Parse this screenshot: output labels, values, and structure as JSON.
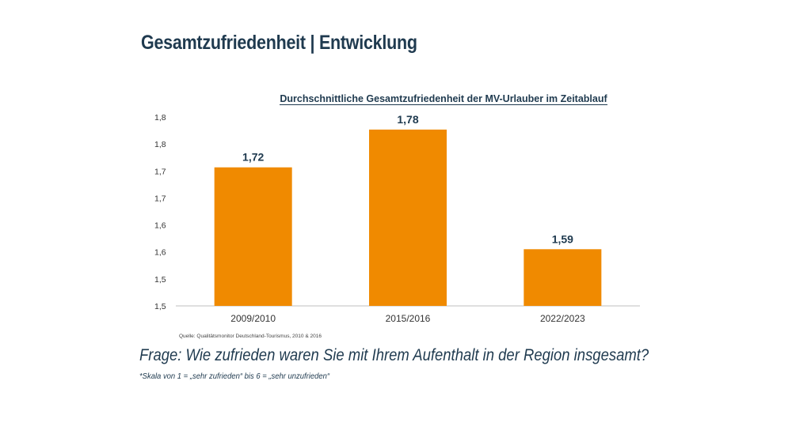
{
  "slide": {
    "title": "Gesamtzufriedenheit | Entwicklung",
    "source": "Quelle: Qualitätsmonitor Deutschland-Tourismus, 2010 & 2016",
    "question": "Frage: Wie zufrieden waren Sie mit Ihrem Aufenthalt in der Region insgesamt?",
    "scale_note": "*Skala von 1 = „sehr zufrieden“ bis  6 = „sehr unzufrieden“"
  },
  "chart_data": {
    "type": "bar",
    "title": "Durchschnittliche Gesamtzufriedenheit der MV-Urlauber im Zeitablauf",
    "categories": [
      "2009/2010",
      "2015/2016",
      "2022/2023"
    ],
    "values": [
      1.72,
      1.78,
      1.59
    ],
    "value_labels": [
      "1,72",
      "1,78",
      "1,59"
    ],
    "y_ticks": [
      "1,5",
      "1,5",
      "1,6",
      "1,6",
      "1,7",
      "1,7",
      "1,8",
      "1,8"
    ],
    "ylim": [
      1.5,
      1.8
    ],
    "grid": false,
    "bar_color": "#f08a00",
    "label_color": "#1f3a4f",
    "axis_color": "#bfbfbf"
  }
}
